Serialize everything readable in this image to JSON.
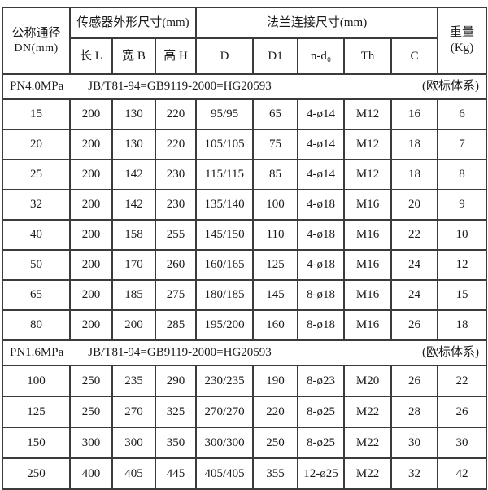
{
  "colors": {
    "border": "#3b3b3b",
    "text": "#1a1a1a",
    "background": "#ffffff"
  },
  "table": {
    "header": {
      "col_dn": {
        "line1": "公称通径",
        "line2": "DN(mm)"
      },
      "sensor_group": "传感器外形尺寸(mm)",
      "sensor_cols": [
        "长 L",
        "宽 B",
        "高 H"
      ],
      "flange_group": "法兰连接尺寸(mm)",
      "flange_cols": [
        "D",
        "D1",
        "n-d₀",
        "Th",
        "C"
      ],
      "weight": {
        "line1": "重量",
        "line2": "(Kg)"
      }
    },
    "sections": [
      {
        "pressure": "PN4.0MPa",
        "standard": "JB/T81-94=GB9119-2000=HG20593",
        "note": "(欧标体系)",
        "rows": [
          [
            "15",
            "200",
            "130",
            "220",
            "95/95",
            "65",
            "4-ø14",
            "M12",
            "16",
            "6"
          ],
          [
            "20",
            "200",
            "130",
            "220",
            "105/105",
            "75",
            "4-ø14",
            "M12",
            "18",
            "7"
          ],
          [
            "25",
            "200",
            "142",
            "230",
            "115/115",
            "85",
            "4-ø14",
            "M12",
            "18",
            "8"
          ],
          [
            "32",
            "200",
            "142",
            "230",
            "135/140",
            "100",
            "4-ø18",
            "M16",
            "20",
            "9"
          ],
          [
            "40",
            "200",
            "158",
            "255",
            "145/150",
            "110",
            "4-ø18",
            "M16",
            "22",
            "10"
          ],
          [
            "50",
            "200",
            "170",
            "260",
            "160/165",
            "125",
            "4-ø18",
            "M16",
            "24",
            "12"
          ],
          [
            "65",
            "200",
            "185",
            "275",
            "180/185",
            "145",
            "8-ø18",
            "M16",
            "24",
            "15"
          ],
          [
            "80",
            "200",
            "200",
            "285",
            "195/200",
            "160",
            "8-ø18",
            "M16",
            "26",
            "18"
          ]
        ]
      },
      {
        "pressure": "PN1.6MPa",
        "standard": "JB/T81-94=GB9119-2000=HG20593",
        "note": "(欧标体系)",
        "rows": [
          [
            "100",
            "250",
            "235",
            "290",
            "230/235",
            "190",
            "8-ø23",
            "M20",
            "26",
            "22"
          ],
          [
            "125",
            "250",
            "270",
            "325",
            "270/270",
            "220",
            "8-ø25",
            "M22",
            "28",
            "26"
          ],
          [
            "150",
            "300",
            "300",
            "350",
            "300/300",
            "250",
            "8-ø25",
            "M22",
            "30",
            "30"
          ],
          [
            "250",
            "400",
            "405",
            "445",
            "405/405",
            "355",
            "12-ø25",
            "M22",
            "32",
            "42"
          ]
        ]
      }
    ]
  }
}
